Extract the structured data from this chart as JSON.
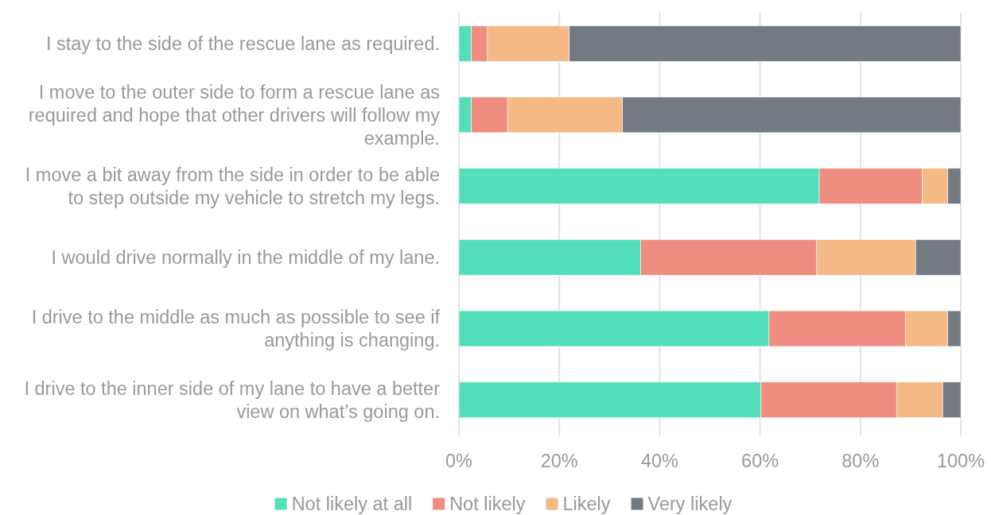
{
  "chart_data": {
    "type": "bar",
    "orientation": "horizontal",
    "stacked": true,
    "categories": [
      "I stay to the side of the rescue lane as required.",
      "I move to the outer side to form a rescue lane as required and hope that other drivers will follow my example.",
      "I move a bit away from the side in order to be able to step outside my vehicle to stretch my legs.",
      "I would drive normally in the middle of my lane.",
      "I drive to the middle as much as possible to see if anything is changing.",
      "I drive to the inner side of my lane to have a better view on what’s going on."
    ],
    "series": [
      {
        "name": "Not likely at all",
        "color": "#52dfba",
        "values": [
          2.5,
          2.5,
          71.8,
          36.2,
          61.8,
          60.2
        ]
      },
      {
        "name": "Not likely",
        "color": "#f08d81",
        "values": [
          3.2,
          7.2,
          20.5,
          35.1,
          27.2,
          27.0
        ]
      },
      {
        "name": "Likely",
        "color": "#f5b985",
        "values": [
          16.3,
          22.9,
          5.1,
          19.7,
          8.4,
          9.2
        ]
      },
      {
        "name": "Very likely",
        "color": "#737a82",
        "values": [
          78.0,
          67.4,
          2.6,
          9.0,
          2.6,
          3.6
        ]
      }
    ],
    "xlim": [
      0,
      100
    ],
    "xticks": [
      {
        "value": 0,
        "label": "0%"
      },
      {
        "value": 20,
        "label": "20%"
      },
      {
        "value": 40,
        "label": "40%"
      },
      {
        "value": 60,
        "label": "60%"
      },
      {
        "value": 80,
        "label": "80%"
      },
      {
        "value": 100,
        "label": "100%"
      }
    ],
    "grid": "x",
    "legend": "bottom"
  }
}
